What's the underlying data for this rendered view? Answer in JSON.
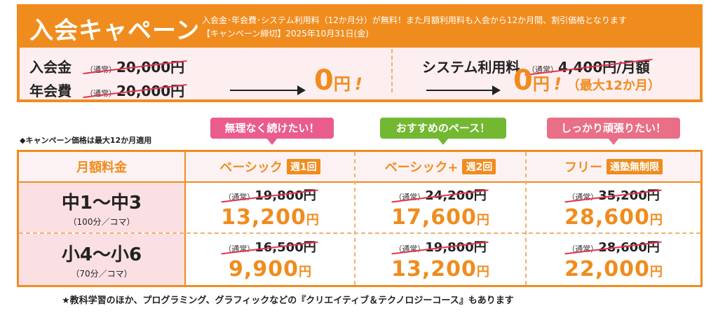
{
  "campaign": {
    "title": "入会キャペーン",
    "desc_line1": "入会金･年会費･システム利用料（12か月分）が無料！また月額利用料も入会から12か月間、割引価格となります",
    "desc_line2": "【キャンペーン締切】2025年10月31日(金)",
    "normal_label": "（通常）",
    "admission_label": "入会金",
    "admission_old": "20,000円",
    "annual_label": "年会費",
    "annual_old": "20,000円",
    "fee_zero": "0",
    "yen": "円",
    "excl": "!",
    "system_label": "システム利用料",
    "system_old": "4,400円/月額",
    "system_zero": "0",
    "system_note": "（最大12か月）"
  },
  "note": "◆キャンペーン価格は最大12か月適用",
  "bubbles": [
    "無理なく続けたい！",
    "おすすめのペース！",
    "しっかり頑張りたい！"
  ],
  "table": {
    "header_label": "月額料金",
    "normal_label": "（通常）",
    "yen": "円",
    "plans": [
      {
        "name": "ベーシック",
        "badge": "週1回"
      },
      {
        "name": "ベーシック+",
        "badge": "週2回"
      },
      {
        "name": "フリー",
        "badge": "通塾無制限"
      }
    ],
    "rows": [
      {
        "grade": "中1～中3",
        "sub": "（100分／コマ）",
        "prices": [
          {
            "old": "19,800円",
            "new": "13,200"
          },
          {
            "old": "24,200円",
            "new": "17,600"
          },
          {
            "old": "35,200円",
            "new": "28,600"
          }
        ]
      },
      {
        "grade": "小4～小6",
        "sub": "（70分／コマ）",
        "prices": [
          {
            "old": "16,500円",
            "new": "9,900"
          },
          {
            "old": "19,800円",
            "new": "13,200"
          },
          {
            "old": "28,600円",
            "new": "22,000"
          }
        ]
      }
    ]
  },
  "footer": "★教科学習のほか、プログラミング、グラフィックなどの『クリエイティブ＆テクノロジーコース』もあります"
}
